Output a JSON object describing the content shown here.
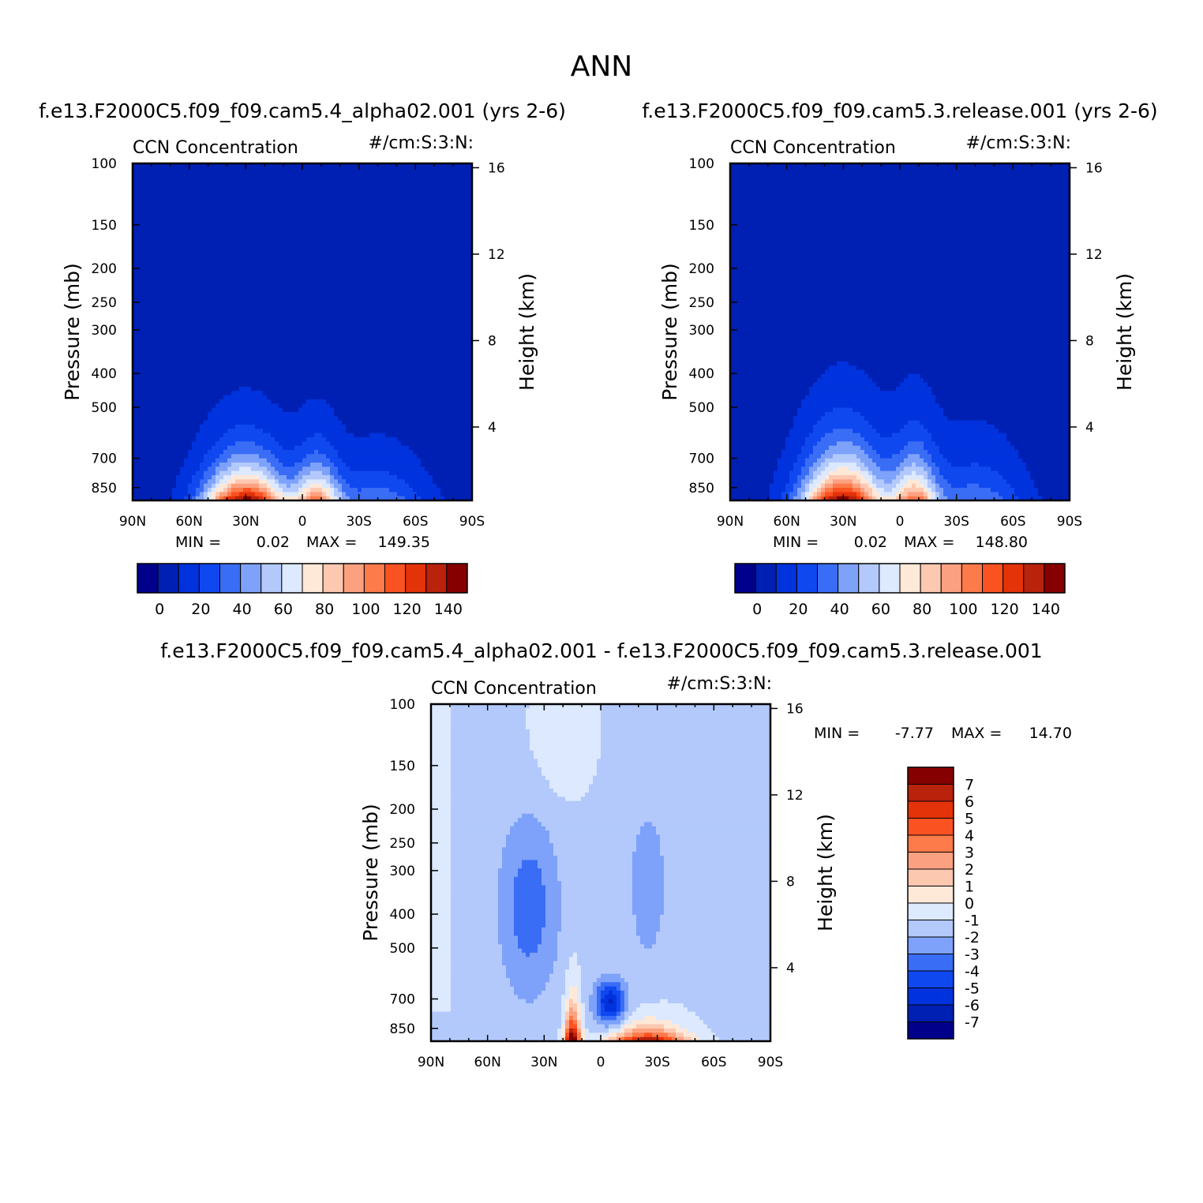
{
  "figure": {
    "title": "ANN"
  },
  "colors": {
    "blue_scale": [
      "#00008b",
      "#0020b4",
      "#0033dd",
      "#1048f0",
      "#3a6df5",
      "#7ea2fa",
      "#b3c9fc",
      "#dce9fe"
    ],
    "red_scale": [
      "#fee8d8",
      "#fdc8b0",
      "#fca180",
      "#fd7a4a",
      "#fb5222",
      "#e43209",
      "#b9220b",
      "#870000"
    ],
    "diff_scale": [
      "#00008b",
      "#0020b4",
      "#0033dd",
      "#1048f0",
      "#3a6df5",
      "#7ea2fa",
      "#b3c9fc",
      "#dce9fe",
      "#fee8d8",
      "#fdc8b0",
      "#fca180",
      "#fd7a4a",
      "#fb5222",
      "#e43209",
      "#b9220b",
      "#870000"
    ]
  },
  "chart_data": [
    {
      "type": "heatmap",
      "panel_title": "f.e13.F2000C5.f09_f09.cam5.4_alpha02.001 (yrs 2-6)",
      "left_label": "CCN Concentration",
      "right_label": "#/cm:S:3:N:",
      "ylabel": "Pressure (mb)",
      "ylabel2": "Height (km)",
      "x_ticks": [
        "90N",
        "60N",
        "30N",
        "0",
        "30S",
        "60S",
        "90S"
      ],
      "y_ticks": [
        "100",
        "150",
        "200",
        "250",
        "300",
        "400",
        "500",
        "700",
        "850"
      ],
      "y2_ticks": [
        "16",
        "12",
        "8",
        "4"
      ],
      "min_label": "MIN =",
      "min_value": "0.02",
      "max_label": "MAX =",
      "max_value": "149.35",
      "colorbar_ticks": [
        "0",
        "20",
        "40",
        "60",
        "80",
        "100",
        "120",
        "140"
      ],
      "colorbar_levels": [
        -10,
        0,
        10,
        20,
        30,
        40,
        50,
        60,
        70,
        80,
        90,
        100,
        110,
        120,
        130,
        140,
        150
      ],
      "zmin": 0.02,
      "zmax": 149.35
    },
    {
      "type": "heatmap",
      "panel_title": "f.e13.F2000C5.f09_f09.cam5.3.release.001 (yrs 2-6)",
      "left_label": "CCN Concentration",
      "right_label": "#/cm:S:3:N:",
      "ylabel": "Pressure (mb)",
      "ylabel2": "Height (km)",
      "x_ticks": [
        "90N",
        "60N",
        "30N",
        "0",
        "30S",
        "60S",
        "90S"
      ],
      "y_ticks": [
        "100",
        "150",
        "200",
        "250",
        "300",
        "400",
        "500",
        "700",
        "850"
      ],
      "y2_ticks": [
        "16",
        "12",
        "8",
        "4"
      ],
      "min_label": "MIN =",
      "min_value": "0.02",
      "max_label": "MAX =",
      "max_value": "148.80",
      "colorbar_ticks": [
        "0",
        "20",
        "40",
        "60",
        "80",
        "100",
        "120",
        "140"
      ],
      "zmin": 0.02,
      "zmax": 148.8
    },
    {
      "type": "heatmap",
      "panel_title": "f.e13.F2000C5.f09_f09.cam5.4_alpha02.001 - f.e13.F2000C5.f09_f09.cam5.3.release.001",
      "left_label": "CCN Concentration",
      "right_label": "#/cm:S:3:N:",
      "ylabel": "Pressure (mb)",
      "ylabel2": "Height (km)",
      "x_ticks": [
        "90N",
        "60N",
        "30N",
        "0",
        "30S",
        "60S",
        "90S"
      ],
      "y_ticks": [
        "100",
        "150",
        "200",
        "250",
        "300",
        "400",
        "500",
        "700",
        "850"
      ],
      "y2_ticks": [
        "16",
        "12",
        "8",
        "4"
      ],
      "min_label": "MIN =",
      "min_value": "-7.77",
      "max_label": "MAX =",
      "max_value": "14.70",
      "colorbar_ticks": [
        "7",
        "6",
        "5",
        "4",
        "3",
        "2",
        "1",
        "0",
        "-1",
        "-2",
        "-3",
        "-4",
        "-5",
        "-6",
        "-7"
      ],
      "zmin": -7.77,
      "zmax": 14.7
    }
  ]
}
